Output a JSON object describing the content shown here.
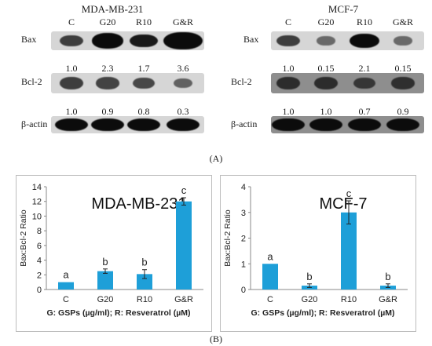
{
  "panel_a": {
    "label": "(A)",
    "left": {
      "cell_line": "MDA-MB-231",
      "lanes": [
        "C",
        "G20",
        "R10",
        "G&R"
      ],
      "rows": [
        "Bax",
        "Bcl-2",
        "β-actin"
      ],
      "bax_values": [
        "1.0",
        "2.3",
        "1.7",
        "3.6"
      ],
      "bcl2_values": [
        "1.0",
        "0.9",
        "0.8",
        "0.3"
      ],
      "bax_intensity": [
        1.0,
        2.3,
        1.7,
        3.6
      ],
      "bcl2_intensity": [
        1.0,
        0.9,
        0.8,
        0.3
      ]
    },
    "right": {
      "cell_line": "MCF-7",
      "lanes": [
        "C",
        "G20",
        "R10",
        "G&R"
      ],
      "rows": [
        "Bax",
        "Bcl-2",
        "β-actin"
      ],
      "bax_values": [
        "1.0",
        "0.15",
        "2.1",
        "0.15"
      ],
      "bcl2_values": [
        "1.0",
        "1.0",
        "0.7",
        "0.9"
      ],
      "bax_intensity": [
        1.0,
        0.15,
        2.1,
        0.15
      ],
      "bcl2_intensity": [
        1.0,
        1.0,
        0.7,
        0.9
      ]
    }
  },
  "panel_b": {
    "label": "(B)"
  },
  "chart_data": [
    {
      "type": "bar",
      "title": "MDA-MB-231",
      "categories": [
        "C",
        "G20",
        "R10",
        "G&R"
      ],
      "values": [
        1.0,
        2.5,
        2.1,
        12.0
      ],
      "errors": [
        0,
        0.3,
        0.6,
        0.5
      ],
      "letters": [
        "a",
        "b",
        "b",
        "c"
      ],
      "ylabel": "Bax:Bcl-2 Ratio",
      "xlabel": "G: GSPs (µg/ml); R: Resveratrol (µM)",
      "ylim": [
        0,
        14
      ],
      "yticks": [
        0,
        2,
        4,
        6,
        8,
        10,
        12,
        14
      ],
      "bar_color": "#1e9fd8",
      "grid": false
    },
    {
      "type": "bar",
      "title": "MCF-7",
      "categories": [
        "C",
        "G20",
        "R10",
        "G&R"
      ],
      "values": [
        1.0,
        0.15,
        3.0,
        0.15
      ],
      "errors": [
        0,
        0.07,
        0.45,
        0.07
      ],
      "letters": [
        "a",
        "b",
        "c",
        "b"
      ],
      "ylabel": "Bax:Bcl-2 Ratio",
      "xlabel": "G: GSPs (µg/ml); R: Resveratrol (µM)",
      "ylim": [
        0,
        4
      ],
      "yticks": [
        0,
        1,
        2,
        3,
        4
      ],
      "bar_color": "#1e9fd8",
      "grid": false
    }
  ]
}
